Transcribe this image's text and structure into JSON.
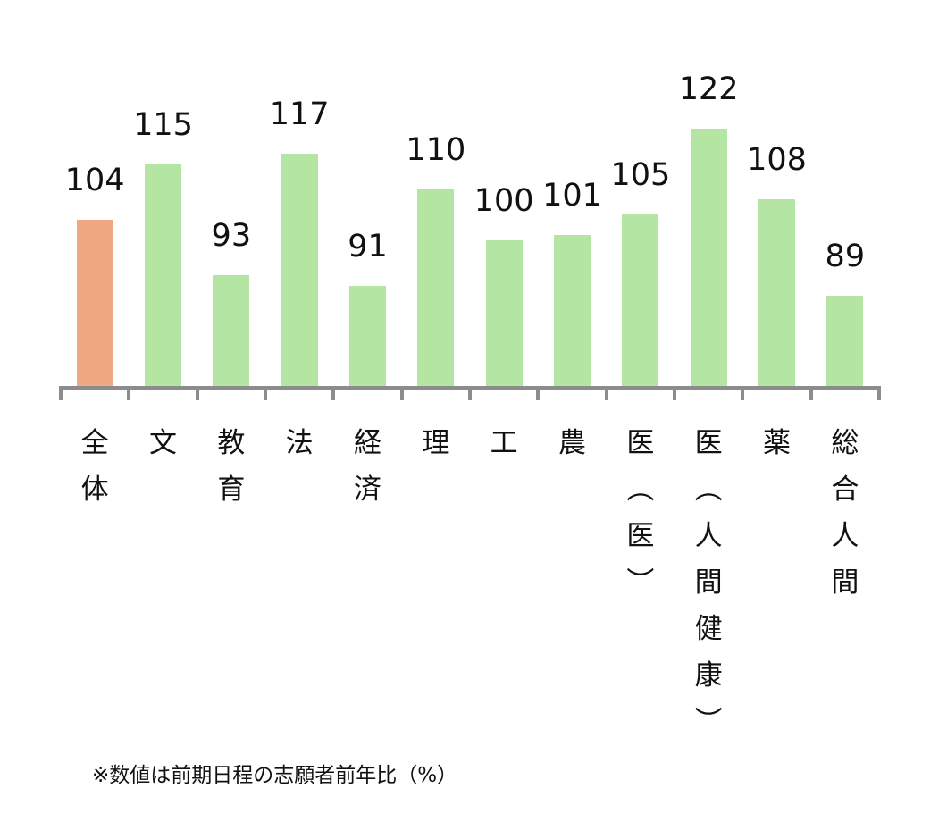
{
  "chart_data": {
    "type": "bar",
    "title": "",
    "xlabel": "",
    "ylabel": "",
    "categories": [
      "全体",
      "文",
      "教育",
      "法",
      "経済",
      "理",
      "工",
      "農",
      "医（医）",
      "医（人間健康）",
      "薬",
      "総合人間"
    ],
    "values": [
      104,
      115,
      93,
      117,
      91,
      110,
      100,
      101,
      105,
      122,
      108,
      89
    ],
    "colors": [
      "#f0a882",
      "#b5e5a2",
      "#b5e5a2",
      "#b5e5a2",
      "#b5e5a2",
      "#b5e5a2",
      "#b5e5a2",
      "#b5e5a2",
      "#b5e5a2",
      "#b5e5a2",
      "#b5e5a2",
      "#b5e5a2"
    ],
    "highlight_color": "#f0a882",
    "bar_color": "#b5e5a2",
    "axis_color": "#8c8c8c",
    "data_labels": true,
    "grid": false,
    "legend": null,
    "ylim": [
      71,
      125
    ],
    "annotation": "※数値は前期日程の志願者前年比（%）"
  },
  "labels": {
    "vertical": [
      [
        "全",
        "体"
      ],
      [
        "文"
      ],
      [
        "教",
        "育"
      ],
      [
        "法"
      ],
      [
        "経",
        "済"
      ],
      [
        "理"
      ],
      [
        "工"
      ],
      [
        "農"
      ],
      [
        "医",
        "︵",
        "医",
        "︶"
      ],
      [
        "医",
        "︵",
        "人",
        "間",
        "健",
        "康",
        "︶"
      ],
      [
        "薬"
      ],
      [
        "総",
        "合",
        "人",
        "間"
      ]
    ]
  },
  "footnote": "※数値は前期日程の志願者前年比（%）"
}
